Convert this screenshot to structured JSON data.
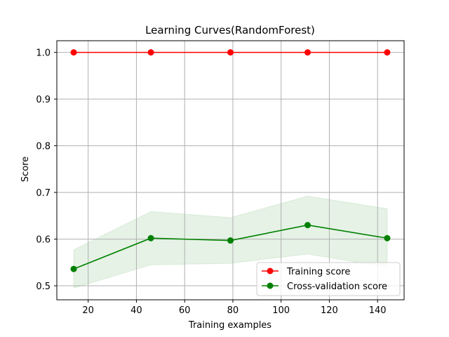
{
  "chart_data": {
    "type": "line",
    "title": "Learning Curves(RandomForest)",
    "xlabel": "Training examples",
    "ylabel": "Score",
    "xlim": [
      7,
      151
    ],
    "ylim": [
      0.47,
      1.025
    ],
    "xticks": [
      20,
      40,
      60,
      80,
      100,
      120,
      140
    ],
    "yticks": [
      0.5,
      0.6,
      0.7,
      0.8,
      0.9,
      1.0
    ],
    "xtick_labels": [
      "20",
      "40",
      "60",
      "80",
      "100",
      "120",
      "140"
    ],
    "ytick_labels": [
      "0.5",
      "0.6",
      "0.7",
      "0.8",
      "0.9",
      "1.0"
    ],
    "grid": true,
    "legend_position": "lower-right",
    "x": [
      14,
      46,
      79,
      111,
      144
    ],
    "series": [
      {
        "name": "Training score",
        "color": "#ff0000",
        "values": [
          1.0,
          1.0,
          1.0,
          1.0,
          1.0
        ],
        "band_lower": [
          1.0,
          1.0,
          1.0,
          1.0,
          1.0
        ],
        "band_upper": [
          1.0,
          1.0,
          1.0,
          1.0,
          1.0
        ]
      },
      {
        "name": "Cross-validation score",
        "color": "#008000",
        "values": [
          0.536,
          0.602,
          0.597,
          0.63,
          0.602
        ],
        "band_lower": [
          0.495,
          0.545,
          0.548,
          0.568,
          0.54
        ],
        "band_upper": [
          0.577,
          0.659,
          0.646,
          0.692,
          0.665
        ]
      }
    ]
  }
}
